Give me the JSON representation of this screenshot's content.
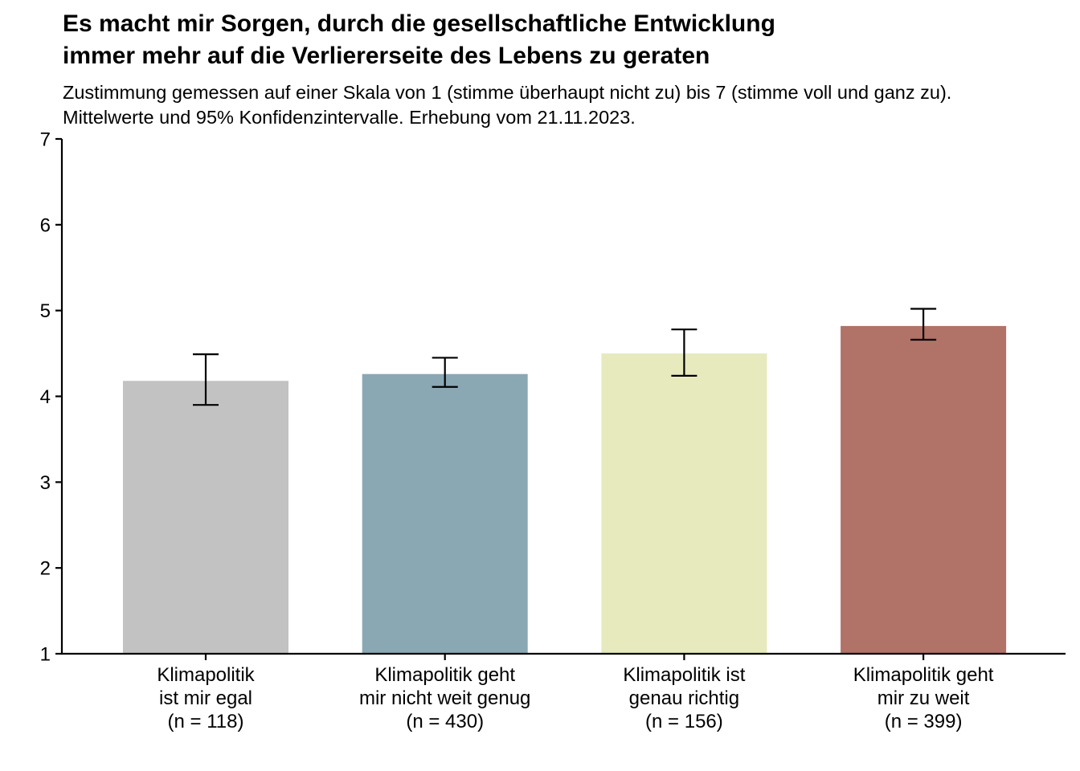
{
  "chart_data": {
    "type": "bar",
    "title_lines": [
      "Es macht mir Sorgen, durch die gesellschaftliche Entwicklung",
      "immer mehr auf die Verliererseite des Lebens zu geraten"
    ],
    "subtitle_lines": [
      "Zustimmung gemessen auf einer Skala von 1 (stimme überhaupt nicht zu) bis 7 (stimme voll und ganz zu).",
      "Mittelwerte und 95% Konfidenzintervalle. Erhebung vom 21.11.2023."
    ],
    "xlabel": "",
    "ylabel": "",
    "ylim": [
      1,
      7
    ],
    "yticks": [
      "1",
      "2",
      "3",
      "4",
      "5",
      "6",
      "7"
    ],
    "grid": false,
    "categories": [
      [
        "Klimapolitik",
        "ist mir egal",
        "(n = 118)"
      ],
      [
        "Klimapolitik geht",
        "mir nicht weit genug",
        "(n = 430)"
      ],
      [
        "Klimapolitik ist",
        "genau richtig",
        "(n = 156)"
      ],
      [
        "Klimapolitik geht",
        "mir zu weit",
        "(n = 399)"
      ]
    ],
    "values": [
      4.18,
      4.26,
      4.5,
      4.82
    ],
    "ci_lower": [
      3.9,
      4.11,
      4.24,
      4.66
    ],
    "ci_upper": [
      4.49,
      4.45,
      4.78,
      5.02
    ],
    "colors": [
      "#c2c2c2",
      "#8aa7b4",
      "#e7eabd",
      "#b17268"
    ]
  }
}
